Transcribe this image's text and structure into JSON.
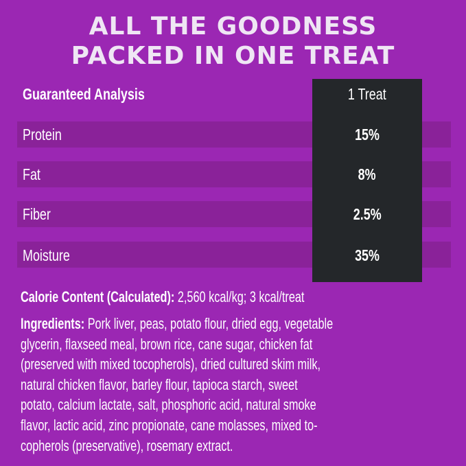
{
  "title": {
    "line1": "ALL THE GOODNESS",
    "line2": "PACKED IN ONE TREAT"
  },
  "colors": {
    "background": "#9b27b3",
    "row_stripe": "#8a2299",
    "value_column": "#24272a"
  },
  "table": {
    "header_label": "Guaranteed Analysis",
    "header_value": "1 Treat",
    "rows": [
      {
        "label": "Protein",
        "value": "15%"
      },
      {
        "label": "Fat",
        "value": "8%"
      },
      {
        "label": "Fiber",
        "value": "2.5%"
      },
      {
        "label": "Moisture",
        "value": "35%"
      }
    ]
  },
  "calorie": {
    "label": "Calorie Content (Calculated):",
    "value": " 2,560 kcal/kg; 3 kcal/treat"
  },
  "ingredients": {
    "label": "Ingredients:",
    "lines": [
      " Pork liver, peas, potato flour, dried egg, vegetable",
      "glycerin, flaxseed meal, brown rice, cane sugar, chicken fat",
      "(preserved with mixed tocopherols), dried cultured skim milk,",
      "natural chicken flavor, barley flour, tapioca starch, sweet",
      "potato, calcium lactate, salt, phosphoric acid, natural smoke",
      "flavor, lactic acid, zinc propionate, cane molasses, mixed to-",
      "copherols (preservative), rosemary extract."
    ]
  }
}
